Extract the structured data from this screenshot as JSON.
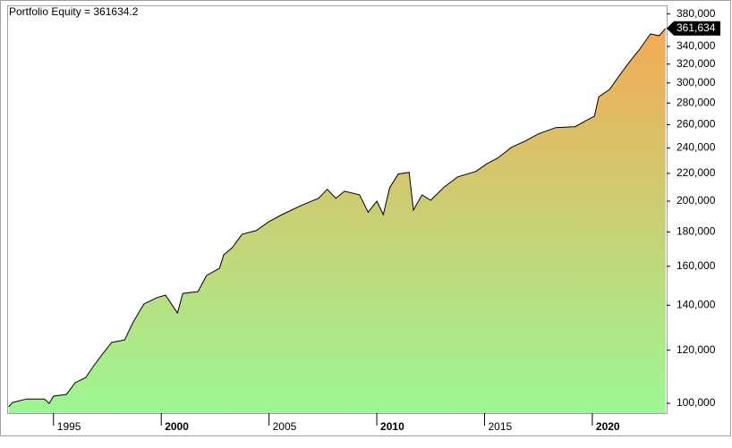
{
  "chart_data": {
    "type": "area",
    "title": "Portfolio Equity = 361634.2",
    "x": [
      1992.92,
      1993.1,
      1993.75,
      1994.58,
      1994.8,
      1995.0,
      1995.6,
      1996.0,
      1996.5,
      1996.9,
      1997.3,
      1997.7,
      1998.3,
      1998.7,
      1999.2,
      1999.8,
      2000.2,
      2000.75,
      2001.0,
      2001.7,
      2002.1,
      2002.7,
      2002.9,
      2003.3,
      2003.75,
      2004.4,
      2005.0,
      2005.6,
      2006.5,
      2007.3,
      2007.7,
      2008.1,
      2008.5,
      2009.2,
      2009.6,
      2010.0,
      2010.3,
      2010.6,
      2011.0,
      2011.5,
      2011.7,
      2012.1,
      2012.5,
      2013.1,
      2013.75,
      2014.6,
      2015.1,
      2015.6,
      2016.25,
      2016.9,
      2017.5,
      2018.3,
      2019.2,
      2019.7,
      2020.1,
      2020.3,
      2020.8,
      2021.25,
      2021.7,
      2022.2,
      2022.7,
      2023.1,
      2023.4
    ],
    "series": [
      {
        "name": "Portfolio Equity",
        "color": "#000000",
        "values": [
          98800,
          100300,
          101500,
          101500,
          100000,
          102500,
          103100,
          107300,
          109300,
          114100,
          118700,
          123200,
          124300,
          132200,
          140600,
          143700,
          144900,
          136300,
          145800,
          146700,
          155000,
          158900,
          166500,
          170600,
          178600,
          180800,
          186500,
          191000,
          197100,
          202000,
          208300,
          202000,
          207000,
          204400,
          192600,
          200000,
          191000,
          209600,
          219500,
          220800,
          194000,
          204400,
          200600,
          209600,
          217400,
          221500,
          227300,
          231700,
          240600,
          245900,
          251900,
          257400,
          258200,
          263600,
          267700,
          286000,
          293500,
          307500,
          321800,
          336800,
          354900,
          352800,
          361634
        ],
        "value_labels": [
          null,
          null,
          null,
          null,
          null,
          null,
          null,
          null,
          null,
          null,
          null,
          null,
          null,
          null,
          null,
          null,
          null,
          null,
          null,
          null,
          null,
          null,
          null,
          null,
          null,
          null,
          null,
          null,
          null,
          null,
          null,
          null,
          null,
          null,
          null,
          null,
          null,
          null,
          null,
          null,
          null,
          null,
          null,
          null,
          null,
          null,
          null,
          null,
          null,
          null,
          null,
          null,
          null,
          null,
          null,
          null,
          null,
          null,
          null,
          null,
          null,
          null,
          "361,634"
        ]
      }
    ],
    "fill_gradient": [
      "#9cf794",
      "#f5aa55"
    ],
    "xlim": [
      1992.85,
      2023.45
    ],
    "xticks": [
      1995,
      2000,
      2005,
      2010,
      2015,
      2020
    ],
    "ylim": [
      96700,
      389000
    ],
    "ylog": true,
    "yticks": [
      {
        "value": 100000,
        "label": "100,000"
      },
      {
        "value": 120000,
        "label": "120,000"
      },
      {
        "value": 140000,
        "label": "140,000"
      },
      {
        "value": 160000,
        "label": "160,000"
      },
      {
        "value": 180000,
        "label": "180,000"
      },
      {
        "value": 200000,
        "label": "200,000"
      },
      {
        "value": 220000,
        "label": "220,000"
      },
      {
        "value": 240000,
        "label": "240,000"
      },
      {
        "value": 260000,
        "label": "260,000"
      },
      {
        "value": 280000,
        "label": "280,000"
      },
      {
        "value": 300000,
        "label": "300,000"
      },
      {
        "value": 320000,
        "label": "320,000"
      },
      {
        "value": 340000,
        "label": "340,000"
      },
      {
        "value": 380000,
        "label": "380,000"
      }
    ]
  }
}
